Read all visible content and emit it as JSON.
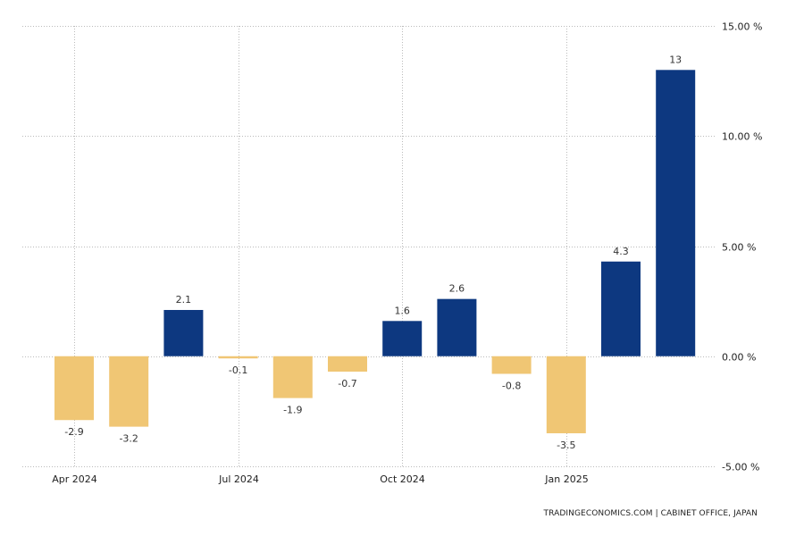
{
  "chart_data": {
    "type": "bar",
    "categories": [
      "Apr 2024",
      "May 2024",
      "Jun 2024",
      "Jul 2024",
      "Aug 2024",
      "Sep 2024",
      "Oct 2024",
      "Nov 2024",
      "Dec 2024",
      "Jan 2025",
      "Feb 2025",
      "Mar 2025"
    ],
    "values": [
      -2.9,
      -3.2,
      2.1,
      -0.1,
      -1.9,
      -0.7,
      1.6,
      2.6,
      -0.8,
      -3.5,
      4.3,
      13
    ],
    "value_labels": [
      "-2.9",
      "-3.2",
      "2.1",
      "-0.1",
      "-1.9",
      "-0.7",
      "1.6",
      "2.6",
      "-0.8",
      "-3.5",
      "4.3",
      "13"
    ],
    "x_tick_labels": [
      "Apr 2024",
      "Jul 2024",
      "Oct 2024",
      "Jan 2025"
    ],
    "y_ticks": [
      15,
      10,
      5,
      0,
      -5
    ],
    "y_tick_labels": [
      "15.00 %",
      "10.00 %",
      "5.00 %",
      "0.00 %",
      "-5.00 %"
    ],
    "ylim": [
      -5,
      15
    ],
    "title": "",
    "xlabel": "",
    "ylabel": "",
    "grid": true,
    "axis_side": "right",
    "colors": {
      "positive": "#0d3880",
      "negative": "#f0c674",
      "grid": "#bbbbbb"
    }
  },
  "source": "TRADINGECONOMICS.COM  |  CABINET OFFICE, JAPAN"
}
